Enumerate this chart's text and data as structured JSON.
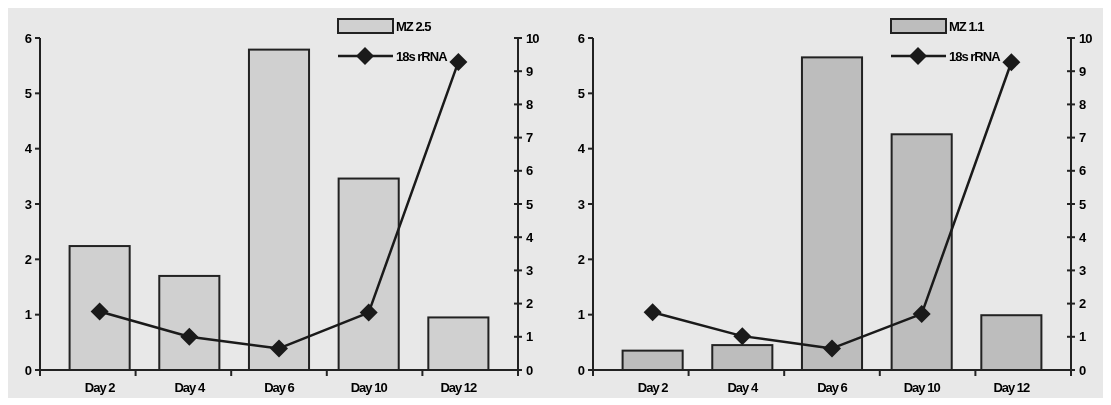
{
  "chart_data": [
    {
      "type": "bar",
      "categories": [
        "Day 2",
        "Day 4",
        "Day 6",
        "Day 10",
        "Day 12"
      ],
      "series": [
        {
          "name": "MZ 2.5",
          "color": "#d0d0d0",
          "values": [
            2.24,
            1.7,
            5.79,
            3.46,
            0.95
          ]
        },
        {
          "name": "18s rRNA",
          "type": "line",
          "axis": "y2",
          "color": "#1a1a1a",
          "values": [
            1.76,
            1.0,
            0.65,
            1.73,
            9.28
          ]
        }
      ],
      "ylim": [
        0,
        6
      ],
      "yticks": [
        0,
        1,
        2,
        3,
        4,
        5,
        6
      ],
      "y2lim": [
        0,
        10
      ],
      "y2ticks": [
        0,
        1,
        2,
        3,
        4,
        5,
        6,
        7,
        8,
        9,
        10
      ],
      "legend": "top right",
      "marker": "diamond",
      "grid": false
    },
    {
      "type": "bar",
      "categories": [
        "Day 2",
        "Day 4",
        "Day 6",
        "Day 10",
        "Day 12"
      ],
      "series": [
        {
          "name": "MZ 1.1",
          "color": "#bdbdbd",
          "values": [
            0.35,
            0.45,
            5.65,
            4.26,
            0.99
          ]
        },
        {
          "name": "18s rRNA",
          "type": "line",
          "axis": "y2",
          "color": "#1a1a1a",
          "values": [
            1.74,
            1.02,
            0.65,
            1.69,
            9.27
          ]
        }
      ],
      "ylim": [
        0,
        6
      ],
      "yticks": [
        0,
        1,
        2,
        3,
        4,
        5,
        6
      ],
      "y2lim": [
        0,
        10
      ],
      "y2ticks": [
        0,
        1,
        2,
        3,
        4,
        5,
        6,
        7,
        8,
        9,
        10
      ],
      "legend": "top right",
      "marker": "diamond",
      "grid": false
    }
  ]
}
